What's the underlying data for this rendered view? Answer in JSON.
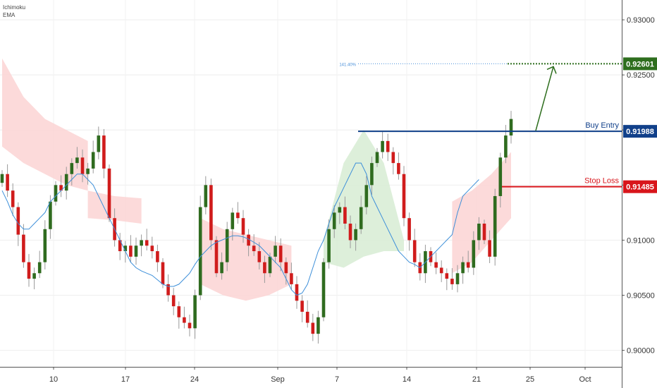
{
  "indicators": [
    "Ichimoku",
    "EMA"
  ],
  "colors": {
    "up": "#2f6b1f",
    "down": "#d01c1c",
    "ema": "#3d8fd9",
    "cloud_bear": "#fbd3d3",
    "cloud_bull": "#d7ecd3",
    "buy_entry": "#11408a",
    "stop_loss": "#d8151b",
    "target": "#2e6e1e",
    "fib": "#4a90d9"
  },
  "chart_data": {
    "type": "candlestick",
    "y_axis": {
      "range": [
        0.8985,
        0.9318
      ],
      "ticks": [
        "0.93000",
        "0.92500",
        "0.92000",
        "0.91500",
        "0.91000",
        "0.90500",
        "0.90000"
      ],
      "tick_values": [
        0.93,
        0.925,
        0.92,
        0.915,
        0.91,
        0.905,
        0.9
      ],
      "position": "right"
    },
    "x_axis": {
      "ticks": [
        "10",
        "17",
        "24",
        "Sep",
        "7",
        "14",
        "21",
        "25",
        "Oct"
      ]
    },
    "levels": [
      {
        "name": "Buy Entry",
        "label": "Buy Entry",
        "value": 0.91988,
        "badge": "0.91988"
      },
      {
        "name": "Stop Loss",
        "label": "Stop Loss",
        "value": 0.91485,
        "badge": "0.91485"
      },
      {
        "name": "Target",
        "label": "141.40%",
        "value": 0.92601,
        "badge": "0.92601"
      }
    ],
    "close": [
      0.916,
      0.9145,
      0.913,
      0.9105,
      0.908,
      0.9065,
      0.907,
      0.908,
      0.911,
      0.9135,
      0.915,
      0.9145,
      0.916,
      0.917,
      0.9175,
      0.916,
      0.9165,
      0.918,
      0.9195,
      0.9165,
      0.912,
      0.91,
      0.909,
      0.9095,
      0.9085,
      0.9095,
      0.91,
      0.9095,
      0.909,
      0.908,
      0.906,
      0.905,
      0.904,
      0.903,
      0.9025,
      0.902,
      0.905,
      0.913,
      0.915,
      0.91,
      0.907,
      0.908,
      0.911,
      0.9125,
      0.912,
      0.9105,
      0.9095,
      0.909,
      0.908,
      0.907,
      0.9085,
      0.9095,
      0.908,
      0.907,
      0.906,
      0.9045,
      0.9035,
      0.9025,
      0.9015,
      0.903,
      0.908,
      0.911,
      0.9125,
      0.913,
      0.9115,
      0.91,
      0.911,
      0.913,
      0.915,
      0.917,
      0.918,
      0.919,
      0.918,
      0.917,
      0.916,
      0.912,
      0.91,
      0.908,
      0.907,
      0.909,
      0.908,
      0.9075,
      0.907,
      0.9065,
      0.906,
      0.907,
      0.908,
      0.9075,
      0.91,
      0.9115,
      0.91,
      0.9085,
      0.914,
      0.9175,
      0.9195,
      0.921
    ],
    "ema": [
      0.9145,
      0.9135,
      0.9123,
      0.9115,
      0.911,
      0.911,
      0.9115,
      0.912,
      0.9125,
      0.9135,
      0.914,
      0.9145,
      0.915,
      0.9155,
      0.916,
      0.916,
      0.9155,
      0.915,
      0.914,
      0.913,
      0.912,
      0.911,
      0.91,
      0.909,
      0.908,
      0.9075,
      0.9072,
      0.907,
      0.9068,
      0.9064,
      0.906,
      0.9058,
      0.9058,
      0.906,
      0.9065,
      0.907,
      0.9078,
      0.9085,
      0.909,
      0.9095,
      0.9098,
      0.91,
      0.9102,
      0.9104,
      0.9104,
      0.9103,
      0.9101,
      0.9098,
      0.9095,
      0.909,
      0.9085,
      0.908,
      0.9075,
      0.9065,
      0.9055,
      0.905,
      0.9052,
      0.906,
      0.9075,
      0.909,
      0.91,
      0.9115,
      0.913,
      0.914,
      0.915,
      0.916,
      0.917,
      0.917,
      0.916,
      0.914,
      0.913,
      0.912,
      0.911,
      0.91,
      0.909,
      0.9085,
      0.908,
      0.9078,
      0.9075,
      0.908,
      0.9085,
      0.909,
      0.9095,
      0.91,
      0.9105,
      0.9125,
      0.914,
      0.9145,
      0.915,
      0.9155
    ],
    "cloud": [
      {
        "from": 0,
        "to": 16,
        "top": [
          0.9265,
          0.923,
          0.921,
          0.92,
          0.919
        ],
        "bottom": [
          0.9185,
          0.917,
          0.916,
          0.915,
          0.9145
        ],
        "sentiment": "bearish"
      },
      {
        "from": 16,
        "to": 26,
        "top": [
          0.9145,
          0.914,
          0.9138
        ],
        "bottom": [
          0.912,
          0.9118,
          0.9115
        ],
        "sentiment": "bearish"
      },
      {
        "from": 37,
        "to": 54,
        "top": [
          0.912,
          0.911,
          0.9105,
          0.91,
          0.9095
        ],
        "bottom": [
          0.906,
          0.905,
          0.9045,
          0.905,
          0.906
        ],
        "sentiment": "bearish"
      },
      {
        "from": 60,
        "to": 75,
        "top": [
          0.91,
          0.917,
          0.92,
          0.917,
          0.91
        ],
        "bottom": [
          0.908,
          0.9075,
          0.9085,
          0.909,
          0.909
        ],
        "sentiment": "bullish"
      },
      {
        "from": 84,
        "to": 95,
        "top": [
          0.9135,
          0.9145,
          0.916,
          0.918
        ],
        "bottom": [
          0.907,
          0.908,
          0.91,
          0.912
        ],
        "sentiment": "bearish"
      }
    ]
  }
}
